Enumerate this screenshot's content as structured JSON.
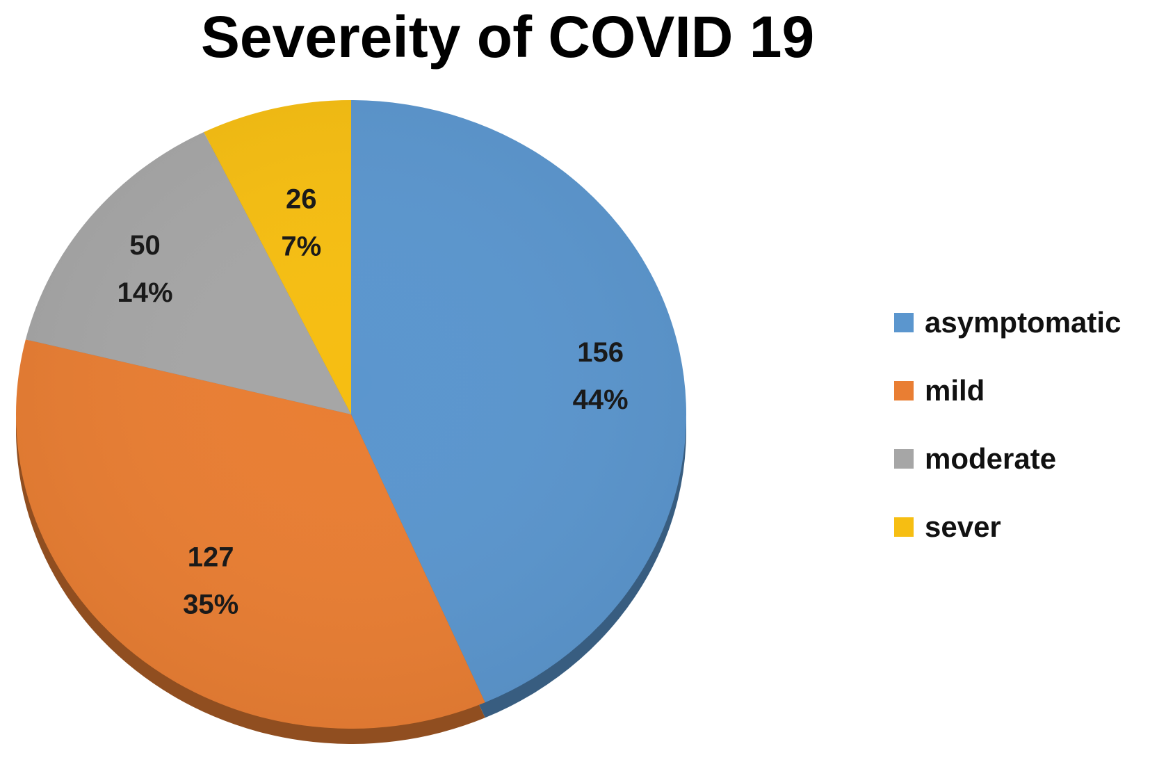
{
  "chart_data": {
    "type": "pie",
    "title": "Severeity of COVID 19",
    "categories": [
      "asymptomatic",
      "mild",
      "moderate",
      "sever"
    ],
    "values": [
      156,
      127,
      50,
      26
    ],
    "percent_labels": [
      "44%",
      "35%",
      "14%",
      "7%"
    ],
    "colors": [
      "#5B96CE",
      "#E97E33",
      "#A6A6A6",
      "#F6BE12"
    ],
    "start_angle_deg": 0,
    "direction": "clockwise",
    "style": "3d-tilted",
    "data_labels": "value and percent",
    "legend_position": "right"
  }
}
